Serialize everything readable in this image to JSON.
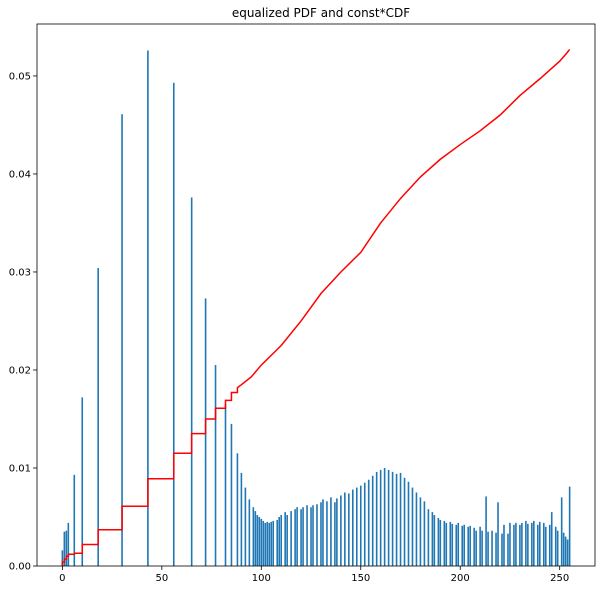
{
  "chart_data": {
    "type": "bar",
    "title": "equalized PDF and const*CDF",
    "xlabel": "",
    "ylabel": "",
    "xlim": [
      -12.75,
      267.75
    ],
    "ylim": [
      0,
      0.0553
    ],
    "xticks": [
      0,
      50,
      100,
      150,
      200,
      250
    ],
    "yticks": [
      0.0,
      0.01,
      0.02,
      0.03,
      0.04,
      0.05
    ],
    "ytick_labels": [
      "0.00",
      "0.01",
      "0.02",
      "0.03",
      "0.04",
      "0.05"
    ],
    "grid": false,
    "bar_color": "#1f77b4",
    "line_color": "#ff0000",
    "bars": [
      [
        0,
        0.0016
      ],
      [
        1,
        0.0035
      ],
      [
        2,
        0.0036
      ],
      [
        3,
        0.0044
      ],
      [
        6,
        0.0093
      ],
      [
        10,
        0.0172
      ],
      [
        18,
        0.0304
      ],
      [
        30,
        0.0461
      ],
      [
        43,
        0.0526
      ],
      [
        56,
        0.0493
      ],
      [
        65,
        0.0376
      ],
      [
        72,
        0.0273
      ],
      [
        77,
        0.0205
      ],
      [
        82,
        0.0165
      ],
      [
        85,
        0.0145
      ],
      [
        88,
        0.0115
      ],
      [
        90,
        0.0095
      ],
      [
        92,
        0.008
      ],
      [
        94,
        0.0068
      ],
      [
        96,
        0.006
      ],
      [
        97,
        0.0056
      ],
      [
        98,
        0.0052
      ],
      [
        99,
        0.005
      ],
      [
        100,
        0.0048
      ],
      [
        101,
        0.0046
      ],
      [
        102,
        0.0044
      ],
      [
        103,
        0.0045
      ],
      [
        104,
        0.0044
      ],
      [
        105,
        0.0045
      ],
      [
        106,
        0.0046
      ],
      [
        108,
        0.0047
      ],
      [
        109,
        0.005
      ],
      [
        110,
        0.0052
      ],
      [
        112,
        0.0055
      ],
      [
        113,
        0.0052
      ],
      [
        115,
        0.0056
      ],
      [
        117,
        0.0058
      ],
      [
        118,
        0.006
      ],
      [
        120,
        0.0058
      ],
      [
        121,
        0.006
      ],
      [
        123,
        0.0062
      ],
      [
        125,
        0.006
      ],
      [
        126,
        0.0062
      ],
      [
        128,
        0.0063
      ],
      [
        130,
        0.0065
      ],
      [
        131,
        0.0068
      ],
      [
        133,
        0.0066
      ],
      [
        135,
        0.007
      ],
      [
        137,
        0.0065
      ],
      [
        138,
        0.0069
      ],
      [
        140,
        0.0072
      ],
      [
        142,
        0.0075
      ],
      [
        144,
        0.0074
      ],
      [
        146,
        0.0078
      ],
      [
        148,
        0.008
      ],
      [
        150,
        0.0082
      ],
      [
        152,
        0.0085
      ],
      [
        154,
        0.0088
      ],
      [
        156,
        0.0092
      ],
      [
        158,
        0.0096
      ],
      [
        160,
        0.0098
      ],
      [
        162,
        0.01
      ],
      [
        164,
        0.0098
      ],
      [
        166,
        0.0096
      ],
      [
        168,
        0.0094
      ],
      [
        170,
        0.0095
      ],
      [
        172,
        0.009
      ],
      [
        174,
        0.0086
      ],
      [
        176,
        0.008
      ],
      [
        178,
        0.0075
      ],
      [
        180,
        0.007
      ],
      [
        182,
        0.0066
      ],
      [
        184,
        0.0058
      ],
      [
        186,
        0.0055
      ],
      [
        187,
        0.0052
      ],
      [
        189,
        0.0049
      ],
      [
        190,
        0.0047
      ],
      [
        192,
        0.0046
      ],
      [
        193,
        0.0044
      ],
      [
        195,
        0.0045
      ],
      [
        196,
        0.0043
      ],
      [
        198,
        0.0042
      ],
      [
        199,
        0.0044
      ],
      [
        201,
        0.0041
      ],
      [
        202,
        0.0042
      ],
      [
        204,
        0.004
      ],
      [
        205,
        0.0041
      ],
      [
        207,
        0.0039
      ],
      [
        208,
        0.0036
      ],
      [
        210,
        0.004
      ],
      [
        211,
        0.0036
      ],
      [
        213,
        0.0071
      ],
      [
        214,
        0.0035
      ],
      [
        216,
        0.0036
      ],
      [
        218,
        0.0034
      ],
      [
        219,
        0.0065
      ],
      [
        221,
        0.0033
      ],
      [
        222,
        0.0042
      ],
      [
        224,
        0.0033
      ],
      [
        225,
        0.0044
      ],
      [
        227,
        0.0042
      ],
      [
        228,
        0.0044
      ],
      [
        230,
        0.0042
      ],
      [
        231,
        0.0044
      ],
      [
        233,
        0.0046
      ],
      [
        234,
        0.0043
      ],
      [
        236,
        0.0044
      ],
      [
        237,
        0.0046
      ],
      [
        239,
        0.0042
      ],
      [
        240,
        0.0045
      ],
      [
        242,
        0.0044
      ],
      [
        243,
        0.004
      ],
      [
        245,
        0.0042
      ],
      [
        246,
        0.0055
      ],
      [
        248,
        0.004
      ],
      [
        249,
        0.0036
      ],
      [
        251,
        0.007
      ],
      [
        252,
        0.0034
      ],
      [
        253,
        0.003
      ],
      [
        254,
        0.0027
      ],
      [
        255,
        0.0081
      ]
    ],
    "cdf_line": [
      [
        0,
        0.0
      ],
      [
        0,
        0.0004
      ],
      [
        1,
        0.0004
      ],
      [
        1,
        0.0007
      ],
      [
        2,
        0.0007
      ],
      [
        2,
        0.001
      ],
      [
        3,
        0.001
      ],
      [
        3,
        0.0012
      ],
      [
        6,
        0.0012
      ],
      [
        6,
        0.0013
      ],
      [
        10,
        0.0013
      ],
      [
        10,
        0.0022
      ],
      [
        18,
        0.0022
      ],
      [
        18,
        0.0037
      ],
      [
        30,
        0.0037
      ],
      [
        30,
        0.0061
      ],
      [
        43,
        0.0061
      ],
      [
        43,
        0.0089
      ],
      [
        56,
        0.0089
      ],
      [
        56,
        0.0115
      ],
      [
        65,
        0.0115
      ],
      [
        65,
        0.0135
      ],
      [
        72,
        0.0135
      ],
      [
        72,
        0.015
      ],
      [
        77,
        0.015
      ],
      [
        77,
        0.0161
      ],
      [
        82,
        0.0161
      ],
      [
        82,
        0.0169
      ],
      [
        85,
        0.0169
      ],
      [
        85,
        0.0177
      ],
      [
        88,
        0.0177
      ],
      [
        88,
        0.0182
      ],
      [
        90,
        0.0185
      ],
      [
        95,
        0.0193
      ],
      [
        100,
        0.0205
      ],
      [
        110,
        0.0225
      ],
      [
        120,
        0.025
      ],
      [
        130,
        0.0278
      ],
      [
        140,
        0.03
      ],
      [
        150,
        0.032
      ],
      [
        160,
        0.035
      ],
      [
        170,
        0.0375
      ],
      [
        180,
        0.0397
      ],
      [
        190,
        0.0415
      ],
      [
        200,
        0.043
      ],
      [
        210,
        0.0444
      ],
      [
        220,
        0.046
      ],
      [
        230,
        0.048
      ],
      [
        240,
        0.0497
      ],
      [
        250,
        0.0515
      ],
      [
        253,
        0.0522
      ],
      [
        255,
        0.0527
      ]
    ]
  }
}
